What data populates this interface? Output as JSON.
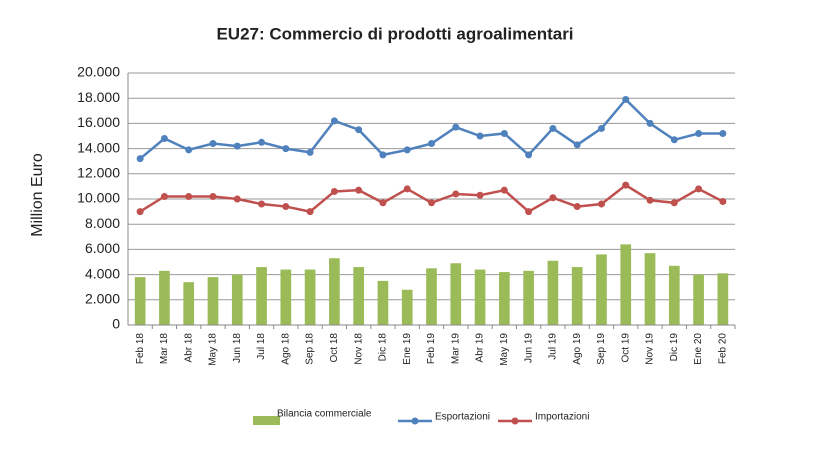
{
  "chart_data": {
    "type": "combo",
    "title": "EU27: Commercio di prodotti agroalimentari",
    "y_label": "Million Euro",
    "categories": [
      "Feb 18",
      "Mar 18",
      "Abr 18",
      "May 18",
      "Jun 18",
      "Jul 18",
      "Ago 18",
      "Sep 18",
      "Oct 18",
      "Nov 18",
      "Dic 18",
      "Ene 19",
      "Feb 19",
      "Mar 19",
      "Abr 19",
      "May 19",
      "Jun 19",
      "Jul 19",
      "Ago 19",
      "Sep 19",
      "Oct 19",
      "Nov 19",
      "Dic 19",
      "Ene 20",
      "Feb 20"
    ],
    "series": [
      {
        "name": "Bilancia commerciale",
        "type": "bar",
        "color": "#9bbb59",
        "values": [
          3800,
          4300,
          3400,
          3800,
          4000,
          4600,
          4400,
          4400,
          5300,
          4600,
          3500,
          2800,
          4500,
          4900,
          4400,
          4200,
          4300,
          5100,
          4600,
          5600,
          6400,
          5700,
          4700,
          4000,
          4100
        ]
      },
      {
        "name": "Esportazioni",
        "type": "line",
        "color": "#4f81bd",
        "values": [
          13200,
          14800,
          13900,
          14400,
          14200,
          14500,
          14000,
          13700,
          16200,
          15500,
          13500,
          13900,
          14400,
          15700,
          15000,
          15200,
          13500,
          15600,
          14300,
          15600,
          17900,
          16000,
          14700,
          15200,
          15200
        ]
      },
      {
        "name": "Importazioni",
        "type": "line",
        "color": "#c0504d",
        "values": [
          9000,
          10200,
          10200,
          10200,
          10000,
          9600,
          9400,
          9000,
          10600,
          10700,
          9700,
          10800,
          9700,
          10400,
          10300,
          10700,
          9000,
          10100,
          9400,
          9600,
          11100,
          9900,
          9700,
          10800,
          9800
        ]
      }
    ],
    "ylim": [
      0,
      20000
    ],
    "yticks": [
      0,
      {
        "value": 2000,
        "label": "2.000"
      },
      {
        "value": 4000,
        "label": "4.000"
      },
      {
        "value": 6000,
        "label": "6.000"
      },
      {
        "value": 8000,
        "label": "8.000"
      },
      {
        "value": 10000,
        "label": "10.000"
      },
      {
        "value": 12000,
        "label": "12.000"
      },
      {
        "value": 14000,
        "label": "14.000"
      },
      {
        "value": 16000,
        "label": "16.000"
      },
      {
        "value": 18000,
        "label": "18.000"
      },
      {
        "value": 20000,
        "label": "20.000"
      }
    ],
    "grid": true,
    "legend": "bottom"
  }
}
